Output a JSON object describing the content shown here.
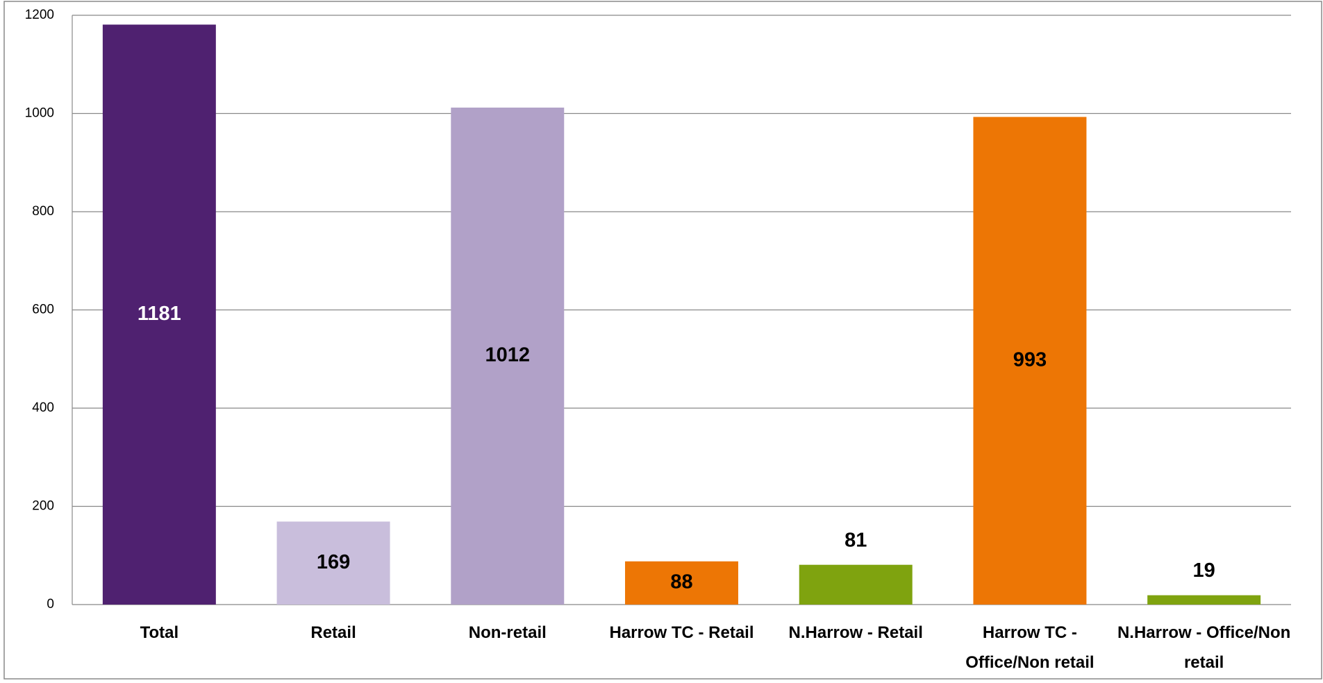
{
  "chart_data": {
    "type": "bar",
    "categories": [
      "Total",
      "Retail",
      "Non-retail",
      "Harrow TC - Retail",
      "N.Harrow - Retail",
      "Harrow TC - Office/Non retail",
      "N.Harrow - Office/Non retail"
    ],
    "values": [
      1181,
      169,
      1012,
      88,
      81,
      993,
      19
    ],
    "colors": [
      "#4f2170",
      "#c9bedc",
      "#b1a1c8",
      "#ed7605",
      "#7fa30f",
      "#ed7605",
      "#7fa30f"
    ],
    "ylim": [
      0,
      1200
    ],
    "yticks": [
      0,
      200,
      400,
      600,
      800,
      1000,
      1200
    ],
    "grid": true
  }
}
